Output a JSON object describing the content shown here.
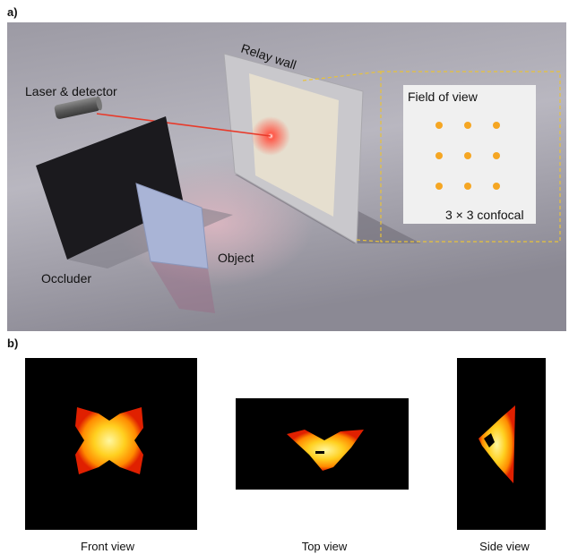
{
  "panel_a": {
    "label": "a)",
    "laser": "Laser & detector",
    "wall": "Relay wall",
    "fov": "Field of view",
    "confocal": "3 × 3 confocal",
    "occluder": "Occluder",
    "object": "Object"
  },
  "panel_b": {
    "label": "b)",
    "views": [
      "Front view",
      "Top view",
      "Side view"
    ]
  }
}
